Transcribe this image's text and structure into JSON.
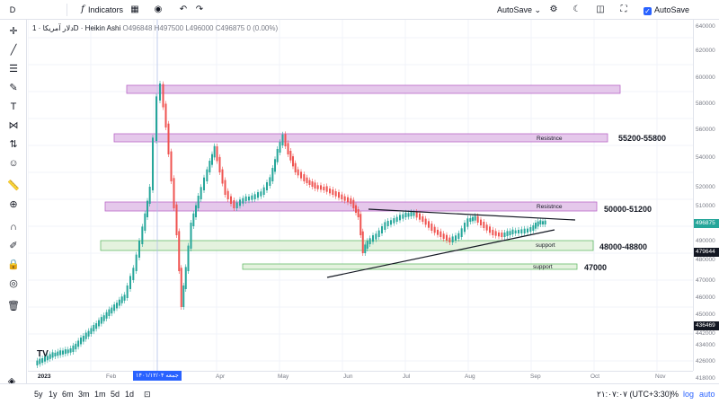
{
  "toolbar": {
    "symbol_short": "D",
    "indicators_label": "Indicators",
    "autosave_menu_label": "AutoSave",
    "autosave_checkbox_label": "AutoSave"
  },
  "legend": {
    "title": "دلار آمریکا · 1D · Heikin Ashi",
    "open": "O496848",
    "high": "H497500",
    "low": "L496000",
    "close": "C496875",
    "change": "0 (0.00%)"
  },
  "price_scale": {
    "ticks": [
      "640000",
      "620000",
      "600000",
      "580000",
      "560000",
      "540000",
      "520000",
      "510000",
      "500000",
      "490000",
      "480000",
      "470000",
      "460000",
      "450000",
      "442000",
      "434000",
      "426000",
      "418000"
    ],
    "last_price": "496875",
    "marker_price_1": "479644",
    "marker_price_2": "436469",
    "last_price_color": "#26a69a",
    "marker_color": "#131722"
  },
  "time_axis": {
    "year_label": "2023",
    "months": [
      "Feb",
      "Mar",
      "Apr",
      "May",
      "Jun",
      "Jul",
      "Aug",
      "Sep",
      "Oct",
      "Nov"
    ],
    "crosshair_date": "۱۴۰۱/۱۲/۰۴ جمعه"
  },
  "zones": [
    {
      "name": "top-zone",
      "label": "",
      "color": "#e1bee7"
    },
    {
      "name": "resistance-1",
      "label": "Resistnce",
      "level": "55200-55800",
      "color": "#e1bee7"
    },
    {
      "name": "resistance-2",
      "label": "Resistnce",
      "level": "50000-51200",
      "color": "#e1bee7"
    },
    {
      "name": "support-1",
      "label": "support",
      "level": "48000-48800",
      "color": "#dff0d8"
    },
    {
      "name": "support-2",
      "label": "support",
      "level": "47000",
      "color": "#dff0d8"
    }
  ],
  "bottombar": {
    "ranges": [
      "5y",
      "1y",
      "6m",
      "3m",
      "1m",
      "5d",
      "1d"
    ],
    "clock": "۲۱:۰۷:۰۷ (UTC+3:30)",
    "percent_label": "%",
    "log_label": "log",
    "auto_label": "auto"
  },
  "colors": {
    "up": "#26a69a",
    "down": "#ef5350",
    "accent": "#2962ff"
  },
  "icons": {
    "left_tools": [
      "crosshair-icon",
      "trend-line-icon",
      "horizontal-lines-icon",
      "channel-icon",
      "brush-icon",
      "text-icon",
      "pattern-icon",
      "prediction-icon",
      "icon-icon",
      "smile-icon",
      "ruler-icon",
      "zoom-icon",
      "magnet-icon",
      "lock-drawing-icon",
      "lock-icon",
      "eye-icon",
      "trash-icon"
    ]
  }
}
